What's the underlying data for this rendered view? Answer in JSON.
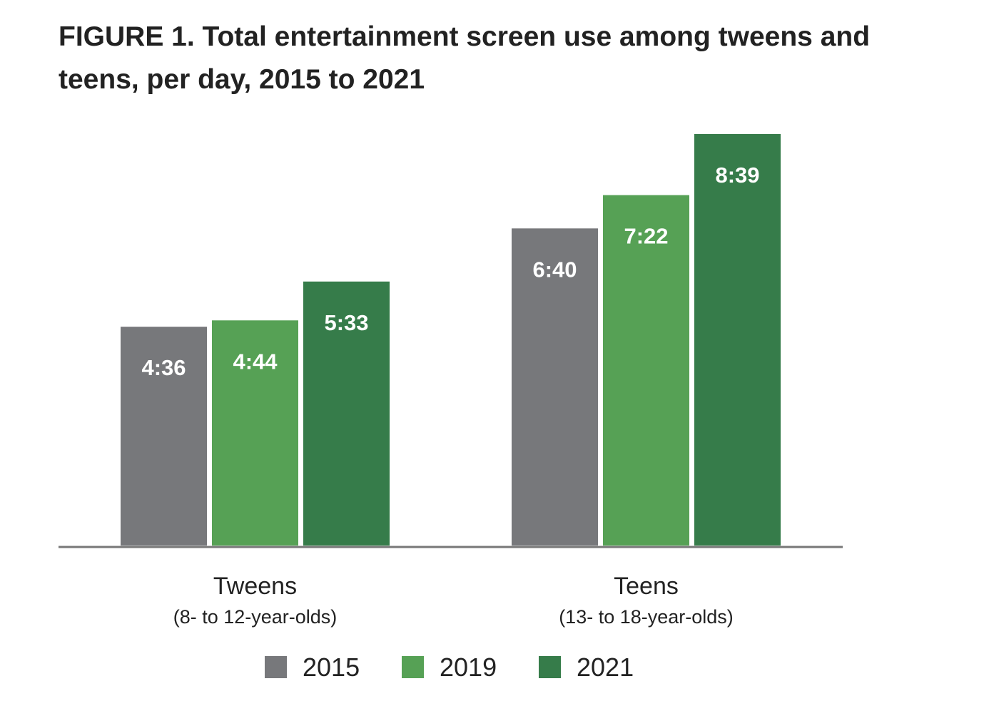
{
  "chart_data": {
    "type": "bar",
    "title": "FIGURE 1. Total entertainment screen use among tweens and teens, per day, 2015 to 2021",
    "categories": [
      {
        "name": "Tweens",
        "subtitle": "(8- to 12-year-olds)"
      },
      {
        "name": "Teens",
        "subtitle": "(13- to 18-year-olds)"
      }
    ],
    "series": [
      {
        "name": "2015",
        "color": "#77787b",
        "values": [
          276,
          400
        ],
        "labels": [
          "4:36",
          "6:40"
        ]
      },
      {
        "name": "2019",
        "color": "#56a155",
        "values": [
          284,
          442
        ],
        "labels": [
          "4:44",
          "7:22"
        ]
      },
      {
        "name": "2021",
        "color": "#367c4a",
        "values": [
          333,
          519
        ],
        "labels": [
          "5:33",
          "8:39"
        ]
      }
    ],
    "value_unit": "minutes per day",
    "ylim": [
      0,
      519
    ],
    "grid": false,
    "legend_position": "bottom"
  }
}
